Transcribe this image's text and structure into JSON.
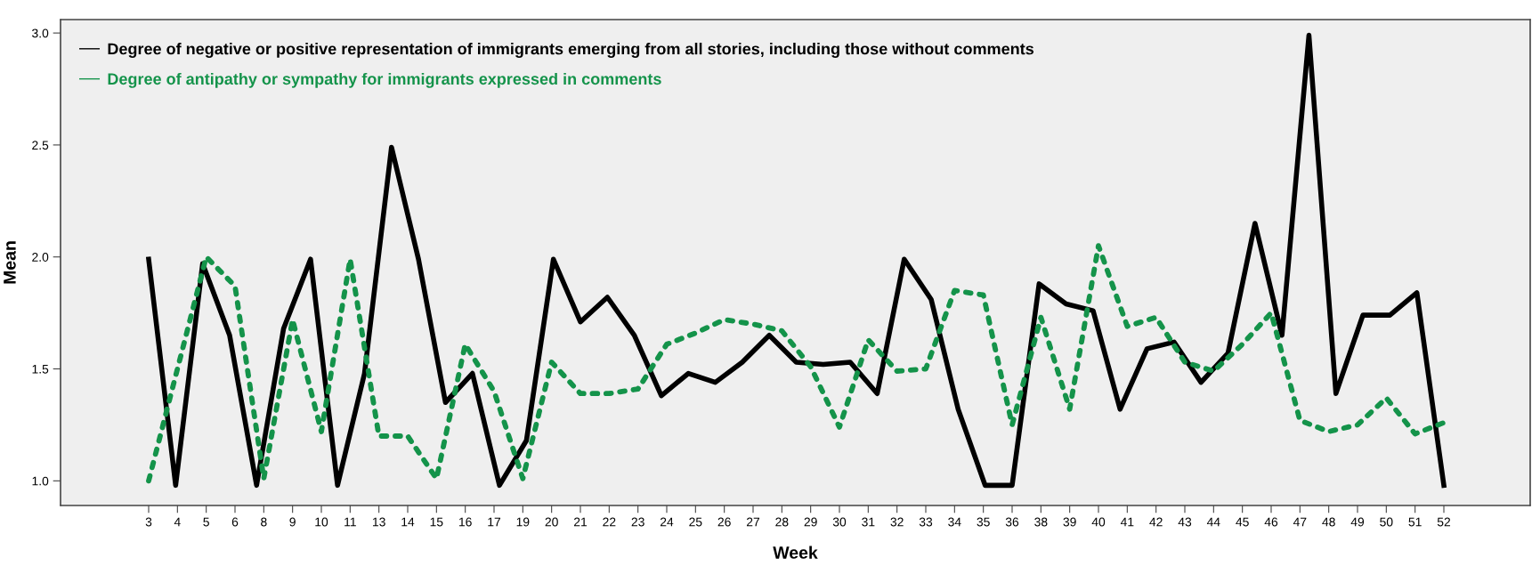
{
  "chart_data": [
    {
      "type": "line",
      "ylabel": "Mean",
      "categories": [
        null,
        null,
        null,
        null,
        null,
        null,
        null,
        null,
        null,
        null,
        null,
        null,
        null,
        null,
        null,
        null,
        null,
        null,
        null,
        null,
        null,
        null,
        null,
        null,
        null,
        null,
        null,
        null,
        null,
        null,
        null,
        null,
        null,
        null,
        null,
        null,
        null,
        null,
        null,
        null,
        null,
        null,
        null,
        null,
        null,
        null,
        null,
        null,
        null
      ],
      "ylim": [
        0.89,
        3.06
      ],
      "yticks": [
        {
          "value": 1.0,
          "label": "1.0"
        },
        {
          "value": 1.5,
          "label": "1.5"
        },
        {
          "value": 2.0,
          "label": "2.0"
        },
        {
          "value": 2.5,
          "label": "2.5"
        },
        {
          "value": 3.0,
          "label": "3.0"
        }
      ],
      "tick_labels": "y",
      "grid": false,
      "legend": "top left",
      "marker": "none",
      "series": [
        {
          "name": "Degree of negative or positive representation of immigrants emerging from all stories, including those without comments",
          "color": "#000000",
          "line_style": "solid",
          "values": [
            1.99,
            0.98,
            1.97,
            1.65,
            0.98,
            1.68,
            1.99,
            0.98,
            1.48,
            2.49,
            1.99,
            1.35,
            1.48,
            0.98,
            1.18,
            1.99,
            1.71,
            1.82,
            1.65,
            1.38,
            1.48,
            1.44,
            1.53,
            1.65,
            1.53,
            1.52,
            1.53,
            1.39,
            1.99,
            1.81,
            1.32,
            0.98,
            0.98,
            1.88,
            1.79,
            1.76,
            1.32,
            1.59,
            1.62,
            1.44,
            1.57,
            2.15,
            1.65,
            2.99,
            1.39,
            1.74,
            1.74,
            1.84,
            0.98
          ]
        }
      ]
    },
    {
      "type": "line",
      "xlabel": "Week",
      "categories": [
        "3",
        "4",
        "5",
        "6",
        "8",
        "9",
        "10",
        "11",
        "13",
        "14",
        "15",
        "16",
        "17",
        "19",
        "20",
        "21",
        "22",
        "23",
        "24",
        "25",
        "26",
        "27",
        "28",
        "29",
        "30",
        "31",
        "32",
        "33",
        "34",
        "35",
        "36",
        "38",
        "39",
        "40",
        "41",
        "42",
        "43",
        "44",
        "45",
        "46",
        "47",
        "48",
        "49",
        "50",
        "51",
        "52"
      ],
      "ylim": [
        0.89,
        3.06
      ],
      "tick_labels": "x",
      "grid": false,
      "legend": "top left",
      "marker": "none",
      "series": [
        {
          "name": "Degree of antipathy or sympathy for immigrants expressed in comments",
          "color": "#14934a",
          "line_style": "dotted",
          "values": [
            1.0,
            1.5,
            2.0,
            1.87,
            1.01,
            1.72,
            1.22,
            1.99,
            1.2,
            1.2,
            1.01,
            1.61,
            1.4,
            1.01,
            1.53,
            1.39,
            1.39,
            1.41,
            1.61,
            1.66,
            1.72,
            1.7,
            1.67,
            1.51,
            1.24,
            1.63,
            1.49,
            1.5,
            1.85,
            1.83,
            1.25,
            1.73,
            1.32,
            2.05,
            1.69,
            1.73,
            1.53,
            1.49,
            1.61,
            1.75,
            1.27,
            1.22,
            1.25,
            1.37,
            1.21,
            1.26
          ]
        }
      ]
    }
  ]
}
